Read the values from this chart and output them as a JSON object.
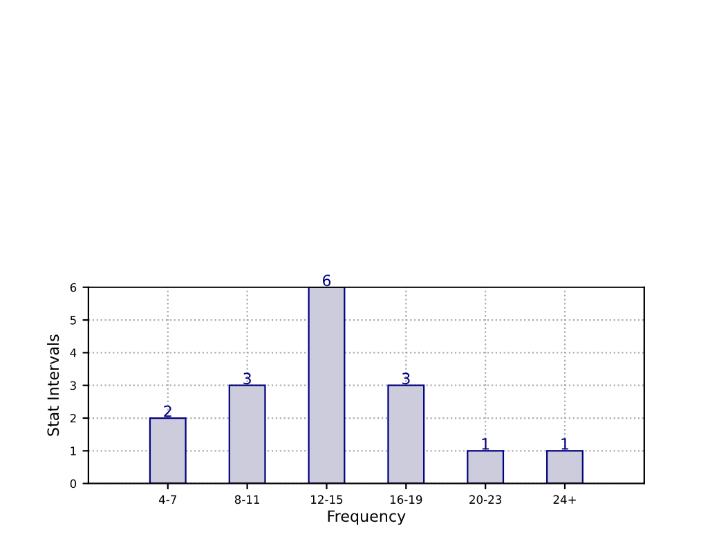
{
  "chart_data": {
    "type": "bar",
    "xlabel": "Frequency",
    "ylabel": "Stat Intervals",
    "categories": [
      "4-7",
      "8-11",
      "12-15",
      "16-19",
      "20-23",
      "24+"
    ],
    "values": [
      2,
      3,
      6,
      3,
      1,
      1
    ],
    "color": "#ccccdd",
    "ylim": [
      0,
      6
    ],
    "yticks": [
      0,
      1,
      2,
      3,
      4,
      5,
      6
    ],
    "grid": true,
    "line_style": "dotted",
    "data_labels": true
  }
}
